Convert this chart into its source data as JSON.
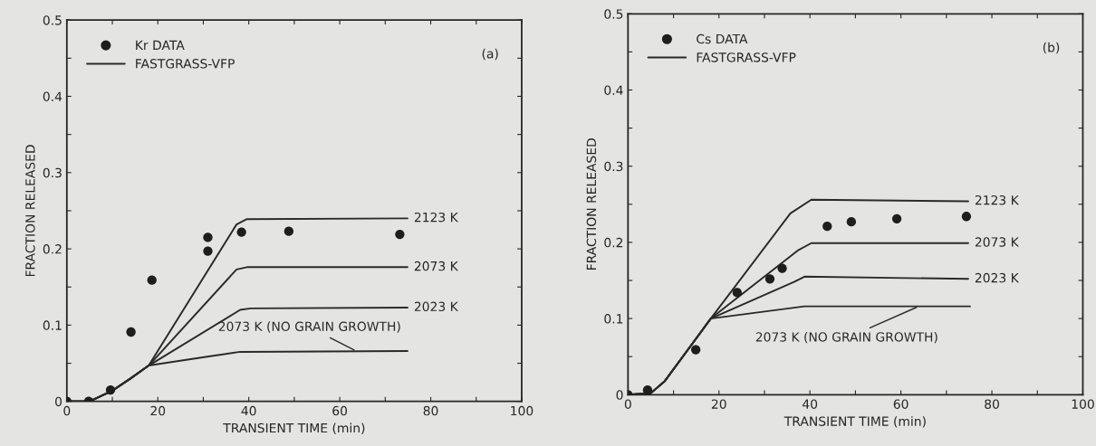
{
  "chart_data": [
    {
      "type": "line",
      "xlabel": "TRANSIENT TIME (min)",
      "ylabel": "FRACTION RELEASED",
      "annotations": [
        "(a)",
        "FASTGRASS-VFP"
      ],
      "xlim": [
        0,
        100
      ],
      "ylim": [
        0,
        0.5
      ],
      "xticks": [
        0,
        {
          "value": 10,
          "label": null
        },
        20,
        {
          "value": 30,
          "label": null
        },
        40,
        {
          "value": 50,
          "label": null
        },
        60,
        {
          "value": 70,
          "label": null
        },
        80,
        {
          "value": 90,
          "label": null
        },
        100
      ],
      "yticks": [
        0,
        {
          "value": 0.05,
          "label": null
        },
        0.1,
        {
          "value": 0.15,
          "label": null
        },
        0.2,
        {
          "value": 0.25,
          "label": null
        },
        0.3,
        {
          "value": 0.35,
          "label": null
        },
        0.4,
        {
          "value": 0.45,
          "label": null
        },
        0.5
      ],
      "legend": "top left",
      "grid": false,
      "series": [
        {
          "name": "Kr DATA",
          "type": "scatter",
          "marker": "circle",
          "color": "#1e1e1e",
          "x": [
            0,
            4.8,
            9.6,
            14.1,
            18.7,
            31.0,
            31.0,
            38.4,
            48.8,
            73.2
          ],
          "values": [
            0,
            0,
            0.015,
            0.091,
            0.159,
            0.197,
            0.215,
            0.222,
            0.223,
            0.219
          ]
        },
        {
          "name": "2123 K",
          "color": "#2a2a2a",
          "x": [
            0,
            5,
            10,
            14,
            18,
            37.3,
            39.6,
            74.9
          ],
          "values": [
            0,
            0,
            0.014,
            0.03,
            0.047,
            0.232,
            0.239,
            0.24
          ]
        },
        {
          "name": "2073 K",
          "color": "#2a2a2a",
          "x": [
            0,
            5,
            10,
            14,
            18,
            37.3,
            39.6,
            74.9
          ],
          "values": [
            0,
            0,
            0.014,
            0.03,
            0.047,
            0.173,
            0.176,
            0.176
          ]
        },
        {
          "name": "2023 K",
          "color": "#2a2a2a",
          "x": [
            0,
            5,
            10,
            14,
            18,
            38.1,
            40.4,
            74.9
          ],
          "values": [
            0,
            0,
            0.014,
            0.03,
            0.047,
            0.12,
            0.122,
            0.123
          ]
        },
        {
          "name": "2073 K (NO GRAIN GROWTH)",
          "color": "#2a2a2a",
          "x": [
            0,
            5,
            10,
            14,
            18,
            31.2,
            38.1,
            74.9
          ],
          "values": [
            0,
            0,
            0.014,
            0.03,
            0.047,
            0.059,
            0.065,
            0.066
          ]
        }
      ]
    },
    {
      "type": "line",
      "xlabel": "TRANSIENT TIME (min)",
      "ylabel": "FRACTION RELEASED",
      "annotations": [
        "(b)",
        "FASTGRASS-VFP"
      ],
      "xlim": [
        0,
        100
      ],
      "ylim": [
        0,
        0.5
      ],
      "xticks": [
        0,
        {
          "value": 10,
          "label": null
        },
        20,
        {
          "value": 30,
          "label": null
        },
        40,
        {
          "value": 50,
          "label": null
        },
        60,
        {
          "value": 70,
          "label": null
        },
        80,
        {
          "value": 90,
          "label": null
        },
        100
      ],
      "yticks": [
        0,
        {
          "value": 0.05,
          "label": null
        },
        0.1,
        {
          "value": 0.15,
          "label": null
        },
        0.2,
        {
          "value": 0.25,
          "label": null
        },
        0.3,
        {
          "value": 0.35,
          "label": null
        },
        0.4,
        {
          "value": 0.45,
          "label": null
        },
        0.5
      ],
      "legend": "top left",
      "grid": false,
      "series": [
        {
          "name": "Cs DATA",
          "type": "scatter",
          "marker": "circle",
          "color": "#1e1e1e",
          "x": [
            0,
            4.3,
            14.9,
            24.0,
            31.2,
            33.9,
            43.8,
            49.1,
            59.1,
            74.4
          ],
          "values": [
            0,
            0.006,
            0.059,
            0.134,
            0.152,
            0.166,
            0.221,
            0.227,
            0.231,
            0.234
          ]
        },
        {
          "name": "2123 K",
          "color": "#2a2a2a",
          "x": [
            0,
            5,
            8.1,
            18.2,
            35.7,
            40.3,
            74.8
          ],
          "values": [
            0,
            0.002,
            0.018,
            0.1,
            0.238,
            0.256,
            0.254
          ]
        },
        {
          "name": "2073 K",
          "color": "#2a2a2a",
          "x": [
            0,
            5,
            8.1,
            18.2,
            37.5,
            40.3,
            74.8
          ],
          "values": [
            0,
            0.002,
            0.018,
            0.1,
            0.19,
            0.199,
            0.199
          ]
        },
        {
          "name": "2023 K",
          "color": "#2a2a2a",
          "x": [
            0,
            5,
            8.1,
            18.2,
            36.5,
            38.8,
            74.8
          ],
          "values": [
            0,
            0.002,
            0.018,
            0.1,
            0.148,
            0.155,
            0.152
          ]
        },
        {
          "name": "2073 K (NO GRAIN GROWTH)",
          "color": "#2a2a2a",
          "x": [
            0,
            5,
            8.1,
            18.2,
            38.8,
            75.2
          ],
          "values": [
            0,
            0.002,
            0.018,
            0.1,
            0.116,
            0.116
          ]
        }
      ]
    }
  ]
}
